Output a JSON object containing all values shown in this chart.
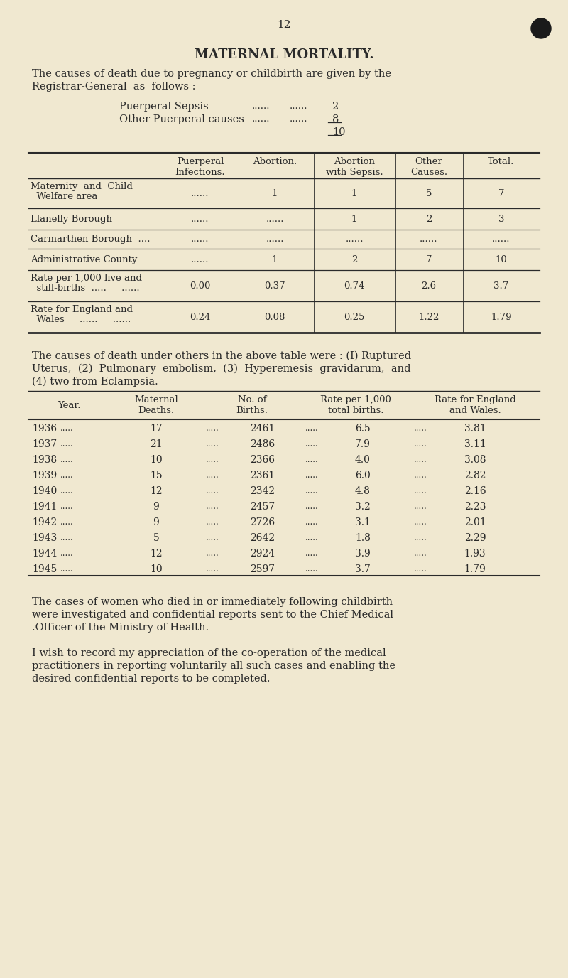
{
  "bg_color": "#f0e8d0",
  "text_color": "#2a2a2a",
  "page_number": "12",
  "title": "MATERNAL MORTALITY.",
  "sepsis_label": "Puerperal Sepsis",
  "sepsis_value": "2",
  "other_label": "Other Puerperal causes",
  "other_value": "8",
  "total_value": "10",
  "table1_headers": [
    "Puerperal\nInfections.",
    "Abortion.",
    "Abortion\nwith Sepsis.",
    "Other\nCauses.",
    "Total."
  ],
  "table1_row_labels": [
    "Maternity  and  Child\n  Welfare area",
    "Llanelly Borough",
    "Carmarthen Borough  ....",
    "Administrative County",
    "Rate per 1,000 live and\n  still-births  .....     ......",
    "Rate for England and\n  Wales     ......     ......"
  ],
  "table1_row_data": [
    [
      "......",
      "1",
      "1",
      "5",
      "7"
    ],
    [
      "......",
      "......",
      "1",
      "2",
      "3"
    ],
    [
      "......",
      "......",
      "......",
      "......",
      "......"
    ],
    [
      "......",
      "1",
      "2",
      "7",
      "10"
    ],
    [
      "0.00",
      "0.37",
      "0.74",
      "2.6",
      "3.7"
    ],
    [
      "0.24",
      "0.08",
      "0.25",
      "1.22",
      "1.79"
    ]
  ],
  "middle_text": [
    "The causes of death under others in the above table were : (I) Ruptured",
    "Uterus,  (2)  Pulmonary  embolism,  (3)  Hyperemesis  gravidarum,  and",
    "(4) two from Eclampsia."
  ],
  "table2_headers": [
    "Year.",
    "Maternal\nDeaths.",
    "No. of\nBirths.",
    "Rate per 1,000\ntotal births.",
    "Rate for England\nand Wales."
  ],
  "table2_rows": [
    [
      "1936",
      "17",
      "2461",
      "6.5",
      "3.81"
    ],
    [
      "1937",
      "21",
      "2486",
      "7.9",
      "3.11"
    ],
    [
      "1938",
      "10",
      "2366",
      "4.0",
      "3.08"
    ],
    [
      "1939",
      "15",
      "2361",
      "6.0",
      "2.82"
    ],
    [
      "1940",
      "12",
      "2342",
      "4.8",
      "2.16"
    ],
    [
      "1941",
      "9",
      "2457",
      "3.2",
      "2.23"
    ],
    [
      "1942",
      "9",
      "2726",
      "3.1",
      "2.01"
    ],
    [
      "1943",
      "5",
      "2642",
      "1.8",
      "2.29"
    ],
    [
      "1944",
      "12",
      "2924",
      "3.9",
      "1.93"
    ],
    [
      "1945",
      "10",
      "2597",
      "3.7",
      "1.79"
    ]
  ],
  "bottom_text1": [
    "The cases of women who died in or immediately following childbirth",
    "were investigated and confidential reports sent to the Chief Medical",
    ".Officer of the Ministry of Health."
  ],
  "bottom_text2": [
    "I wish to record my appreciation of the co-operation of the medical",
    "practitioners in reporting voluntarily all such cases and enabling the",
    "desired confidential reports to be completed."
  ]
}
